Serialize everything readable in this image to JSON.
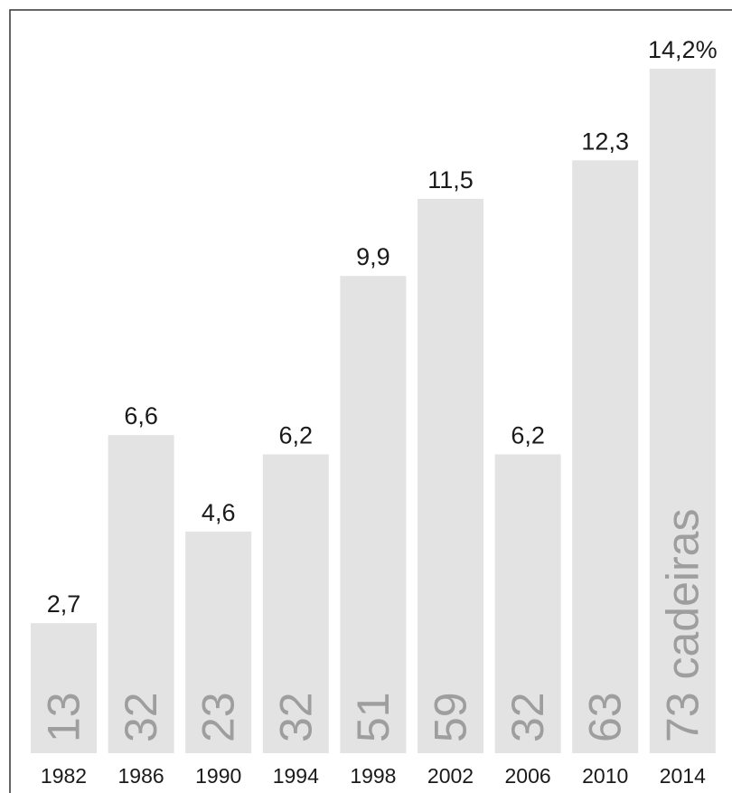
{
  "chart_data": {
    "type": "bar",
    "title": "",
    "xlabel": "",
    "ylabel": "",
    "ylim": [
      0,
      14.2
    ],
    "categories": [
      "1982",
      "1986",
      "1990",
      "1994",
      "1998",
      "2002",
      "2006",
      "2010",
      "2014"
    ],
    "values": [
      2.7,
      6.6,
      4.6,
      6.2,
      9.9,
      11.5,
      6.2,
      12.3,
      14.2
    ],
    "value_labels": [
      "2,7",
      "6,6",
      "4,6",
      "6,2",
      "9,9",
      "11,5",
      "6,2",
      "12,3",
      "14,2%"
    ],
    "seat_labels": [
      "13",
      "32",
      "23",
      "32",
      "51",
      "59",
      "32",
      "63",
      "73 cadeiras"
    ],
    "grid": false,
    "legend": "none",
    "colors": {
      "bar": "#e3e3e3",
      "seat_text": "#9e9e9e",
      "text": "#1a1a1a",
      "frame": "#333333"
    }
  }
}
